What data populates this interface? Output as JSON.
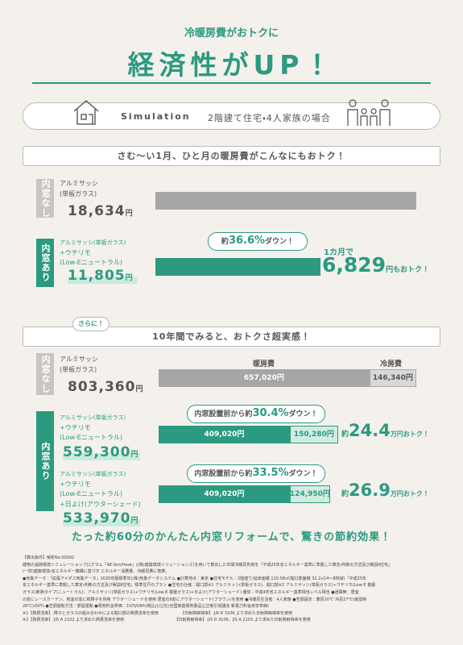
{
  "header": {
    "subtitle": "冷暖房費がおトクに",
    "title": "経済性がUP！"
  },
  "simulation": {
    "label": "Simulation",
    "text": "2階建て住宅・4人家族の場合"
  },
  "monthly": {
    "heading": "さむ〜い1月、ひと月の暖房費がこんなにもおトク！",
    "without": {
      "side": "内窓なし",
      "lines": [
        "アルミサッシ",
        "(単板ガラス)"
      ],
      "value": 18634,
      "value_label": "18,634",
      "unit": "円"
    },
    "with": {
      "side": "内窓あり",
      "lines": [
        "アルミサッシ(単板ガラス)",
        "+ウチリモ",
        "(Low-Eニュートラル)"
      ],
      "value": 11805,
      "value_label": "11,805",
      "unit": "円"
    },
    "callout": {
      "prefix": "約",
      "value": 36.6,
      "value_label": "36.6%",
      "suffix": "ダウン！"
    },
    "saving": {
      "prefix": "1カ月で",
      "value": 6829,
      "value_label": "6,829",
      "suffix": "円もおトク！"
    }
  },
  "decade": {
    "badge": "さらに！",
    "heading": "10年間でみると、おトクさ超実感！",
    "heating_header": "暖房費",
    "cooling_header": "冷房費",
    "without": {
      "side": "内窓なし",
      "lines": [
        "アルミサッシ",
        "(単板ガラス)"
      ],
      "total": 803360,
      "total_label": "803,360",
      "unit": "円",
      "heating": 657020,
      "heating_label": "657,020円",
      "cooling": 146340,
      "cooling_label": "146,340円"
    },
    "with_side": "内窓あり",
    "with1": {
      "lines": [
        "アルミサッシ(単板ガラス)",
        "+ウチリモ",
        "(Low-Eニュートラル)"
      ],
      "total": 559300,
      "total_label": "559,300",
      "unit": "円",
      "heating": 409020,
      "heating_label": "409,020円",
      "cooling": 150280,
      "cooling_label": "150,280円",
      "callout": {
        "prefix": "内窓設置前から約",
        "value": 30.4,
        "value_label": "30.4%",
        "suffix": "ダウン！"
      },
      "saving": {
        "prefix": "約",
        "value": 24.4,
        "value_label": "24.4",
        "suffix": "万円おトク！"
      }
    },
    "with2": {
      "lines": [
        "アルミサッシ(単板ガラス)",
        "+ウチリモ",
        "(Low-Eニュートラル)",
        "+日よけ(アウターシェード)"
      ],
      "total": 533970,
      "total_label": "533,970",
      "unit": "円",
      "heating": 409020,
      "heating_label": "409,020円",
      "cooling": 124950,
      "cooling_label": "124,950円",
      "callout": {
        "prefix": "内窓設置前から約",
        "value": 33.5,
        "value_label": "33.5%",
        "suffix": "ダウン！"
      },
      "saving": {
        "prefix": "約",
        "value": 26.9,
        "value_label": "26.9",
        "suffix": "万円おトク！"
      }
    }
  },
  "conclusion": "たった約60分のかんたん内窓リフォームで、驚きの節約効果！",
  "notes": [
    "【算出条件】解析No.00092",
    "建物の温熱環境シミュレーションプログラム「AE-Sim/Heat」((株)建築環境ソリューションズ)を用いて算出した年間冷暖房負荷を「平成25年省エネルギー基準に準拠した算定・判断の方法及び解説Ⅱ住宅」",
    "(一財)建築環境・省エネルギー機構に基づき エネルギー消費量、冷暖房費に換算。",
    "●気象データ：「拡張アメダス気象データ」2020年版標準年((株)気象データシステム ●計算地点：東京 ●住宅モデル：2階建て/延床面積 120.08㎡/開口部面積 32.2㎡(4～8地域)「平成25年",
    "省エネルギー基準に準拠した算定・判断の方法及び解説Ⅱ住宅」標準住戸のプラン ●住宅の仕様：開口部※1 アルミサッシ(単板ガラス)、開口部※2 アルミサッシ(単板ガラス)+ウチリモ(Low-E 複層",
    "ガラス(断熱タイプ)ニュートラル)、アルミサッシ(単板ガラス)+ウチリモ(Low-E 複層ガラス)+日よけ(アウターシェード) 躯体：平成4年省エネルギー基準相当レベル相当 ●通風無：居室",
    "の窓にレースカーテン、和室の窓に和障子を併用 アウターシェードを使用 居室の9窓にアウターシェード(ブラウン)を使用 ●冷暖房生活者：4人家族 ●空調設定：暖房20℃ 冷房27℃(就寝時",
    "28℃)・60% ●空調運転方法：部屋運転 ●電気料金単価：31円/kWh(税込)((公社)全国家庭電気製品公正取引協議会 新電力料金目安単価)",
    "※1【熱貫流率】:障子とガラスの組み合わせによる開口部の熱貫流率を使用　　　　　　【日射熱取得率】:JIS R 3106 より求めた日射熱取得率を使用",
    "※2【熱貫流率】:JIS A 2102 より求めた熱貫流率を使用　　　　　　　　　　　　　【日射熱取得率】:JIS R 3106、JIS A 2103 より求めた日射熱取得率を使用"
  ]
}
